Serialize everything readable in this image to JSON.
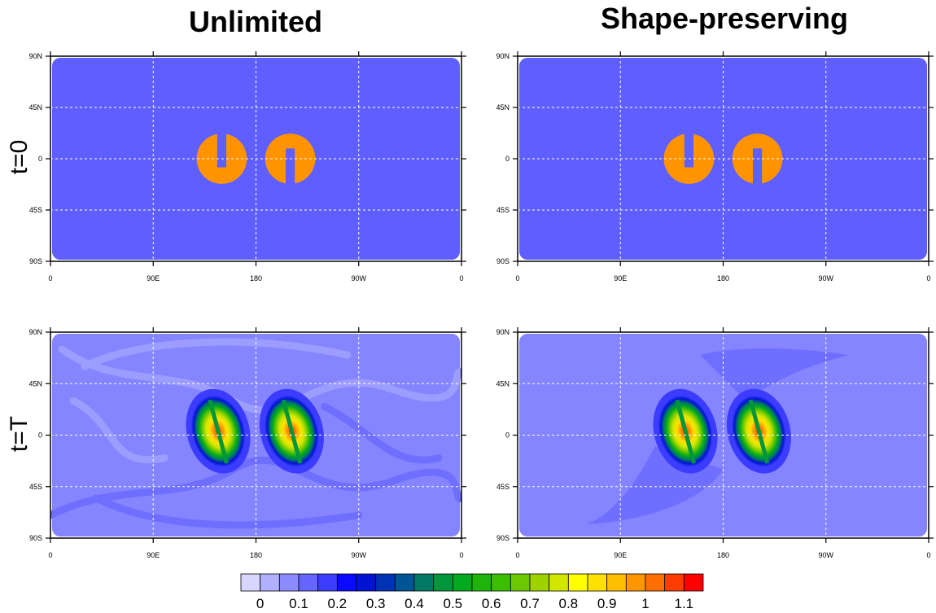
{
  "figure": {
    "column_titles": [
      "Unlimited",
      "Shape-preserving"
    ],
    "row_labels": [
      "t=0",
      "t=T"
    ]
  },
  "chart_data": {
    "type": "heatmap",
    "panels": [
      {
        "column": "Unlimited",
        "row": "t=0"
      },
      {
        "column": "Shape-preserving",
        "row": "t=0"
      },
      {
        "column": "Unlimited",
        "row": "t=T"
      },
      {
        "column": "Shape-preserving",
        "row": "t=T"
      }
    ],
    "x_ticks": [
      "0",
      "90E",
      "180",
      "90W",
      "0"
    ],
    "x_tick_values": [
      0,
      90,
      180,
      270,
      360
    ],
    "y_ticks": [
      "90N",
      "45N",
      "0",
      "45S",
      "90S"
    ],
    "y_tick_values": [
      90,
      45,
      0,
      -45,
      -90
    ],
    "xlim": [
      0,
      360
    ],
    "ylim": [
      -90,
      90
    ],
    "grid": true,
    "colorbar": {
      "levels": [
        0,
        0.05,
        0.1,
        0.15,
        0.2,
        0.25,
        0.3,
        0.35,
        0.4,
        0.45,
        0.5,
        0.55,
        0.6,
        0.65,
        0.7,
        0.75,
        0.8,
        0.85,
        0.9,
        0.95,
        1,
        1.05,
        1.1
      ],
      "labels": [
        "0",
        "0.1",
        "0.2",
        "0.3",
        "0.4",
        "0.5",
        "0.6",
        "0.7",
        "0.8",
        "0.9",
        "1",
        "1.1"
      ],
      "colors": [
        "#d6d6ff",
        "#b0b0ff",
        "#8c8cff",
        "#6565ff",
        "#3c3cff",
        "#0a0aff",
        "#0014d2",
        "#0032b4",
        "#005596",
        "#007864",
        "#00963c",
        "#00aa1e",
        "#1eb40a",
        "#3cbe00",
        "#6ec800",
        "#a0d200",
        "#d2e600",
        "#ffff00",
        "#ffe100",
        "#ffbe00",
        "#ff9600",
        "#ff6e00",
        "#ff3c00",
        "#ff0000"
      ]
    },
    "fields": {
      "background_t0": "#5f5fff",
      "blob_t0": "#ff9400",
      "background_tT": "#8585ff",
      "filament_tT": "#9d9dff",
      "filament_dark_tT": "#6f6fff"
    }
  }
}
